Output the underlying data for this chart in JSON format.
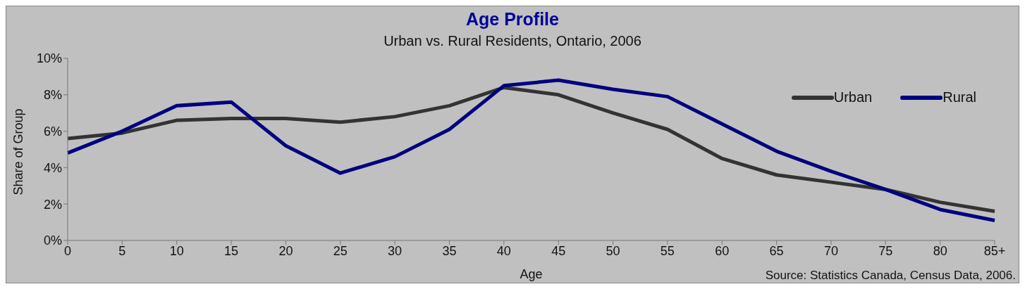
{
  "chart_data": {
    "type": "line",
    "title": "Age Profile",
    "subtitle": "Urban vs. Rural Residents, Ontario, 2006",
    "xlabel": "Age",
    "ylabel": "Share of Group",
    "categories": [
      "0",
      "5",
      "10",
      "15",
      "20",
      "25",
      "30",
      "35",
      "40",
      "45",
      "50",
      "55",
      "60",
      "65",
      "70",
      "75",
      "80",
      "85+"
    ],
    "series": [
      {
        "name": "Urban",
        "color": "#333333",
        "values": [
          5.6,
          5.9,
          6.6,
          6.7,
          6.7,
          6.5,
          6.8,
          7.4,
          8.4,
          8.0,
          7.0,
          6.1,
          4.5,
          3.6,
          3.2,
          2.8,
          2.1,
          1.6
        ]
      },
      {
        "name": "Rural",
        "color": "#000080",
        "values": [
          4.8,
          6.0,
          7.4,
          7.6,
          5.2,
          3.7,
          4.6,
          6.1,
          8.5,
          8.8,
          8.3,
          7.9,
          6.4,
          4.9,
          3.8,
          2.8,
          1.7,
          1.1
        ]
      }
    ],
    "ylim": [
      0,
      10
    ],
    "yticks": [
      {
        "value": 0,
        "label": "0%"
      },
      {
        "value": 2,
        "label": "2%"
      },
      {
        "value": 4,
        "label": "4%"
      },
      {
        "value": 6,
        "label": "6%"
      },
      {
        "value": 8,
        "label": "8%"
      },
      {
        "value": 10,
        "label": "10%"
      }
    ],
    "grid": false,
    "legend": "top right",
    "marker": "none",
    "line_style": "solid",
    "annotations": [
      "Source: Statistics Canada, Census Data, 2006."
    ]
  }
}
